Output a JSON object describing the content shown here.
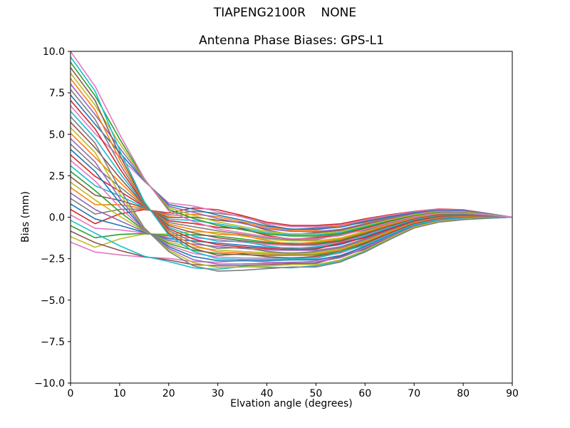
{
  "figure": {
    "suptitle": "TIAPENG2100R    NONE",
    "title": "Antenna Phase Biases: GPS-L1",
    "background": "#ffffff"
  },
  "axes": {
    "xlabel": "Elvation angle (degrees)",
    "ylabel": "Bias (mm)",
    "xlim": [
      0,
      90
    ],
    "ylim": [
      -10.0,
      10.0
    ],
    "xticks": [
      0,
      10,
      20,
      30,
      40,
      50,
      60,
      70,
      80,
      90
    ],
    "xtick_labels": [
      "0",
      "10",
      "20",
      "30",
      "40",
      "50",
      "60",
      "70",
      "80",
      "90"
    ],
    "yticks": [
      10.0,
      7.5,
      5.0,
      2.5,
      0.0,
      -2.5,
      -5.0,
      -7.5,
      -10.0
    ],
    "ytick_labels": [
      "10.0",
      "7.5",
      "5.0",
      "2.5",
      "0.0",
      "−2.5",
      "−5.0",
      "−7.5",
      "−10.0"
    ],
    "grid": false,
    "legend": "none",
    "spine_color": "#000000",
    "tick_color": "#000000"
  },
  "chart_data": {
    "type": "line",
    "title": "Antenna Phase Biases: GPS-L1",
    "xlabel": "Elvation angle (degrees)",
    "ylabel": "Bias (mm)",
    "xlim": [
      0,
      90
    ],
    "ylim": [
      -10.0,
      10.0
    ],
    "grid": false,
    "legend": "none",
    "palette": [
      "#1f77b4",
      "#ff7f0e",
      "#2ca02c",
      "#d62728",
      "#9467bd",
      "#8c564b",
      "#e377c2",
      "#7f7f7f",
      "#bcbd22",
      "#17becf"
    ],
    "x": [
      0,
      5,
      10,
      15,
      20,
      25,
      30,
      35,
      40,
      45,
      50,
      55,
      60,
      65,
      70,
      75,
      80,
      85,
      90
    ],
    "series": [
      {
        "color": "#e377c2",
        "values": [
          -1.5,
          -2.1,
          -2.27,
          -2.41,
          -2.48,
          -2.67,
          -2.72,
          -2.6,
          -2.7,
          -2.75,
          -2.64,
          -2.37,
          -1.81,
          -1.14,
          -0.51,
          -0.19,
          -0.06,
          -0.03,
          0.0
        ]
      },
      {
        "color": "#bcbd22",
        "values": [
          -1.17,
          -1.81,
          -1.31,
          -1.01,
          -1.02,
          -0.87,
          -0.92,
          -1.13,
          -1.34,
          -1.43,
          -1.43,
          -1.25,
          -0.84,
          -0.41,
          -0.02,
          0.2,
          0.23,
          0.12,
          0.0
        ]
      },
      {
        "color": "#8c564b",
        "values": [
          -0.84,
          -1.53,
          -2.0,
          -2.38,
          -2.58,
          -2.86,
          -2.93,
          -2.92,
          -2.86,
          -2.79,
          -2.79,
          -2.35,
          -1.93,
          -1.22,
          -0.56,
          -0.23,
          -0.1,
          -0.04,
          0.0
        ]
      },
      {
        "color": "#2ca02c",
        "values": [
          -0.51,
          -1.24,
          -1.04,
          -0.98,
          -1.11,
          -1.06,
          -1.14,
          -1.31,
          -1.5,
          -1.57,
          -1.57,
          -1.39,
          -0.96,
          -0.49,
          -0.08,
          0.16,
          0.19,
          0.1,
          0.0
        ]
      },
      {
        "color": "#17becf",
        "values": [
          -0.19,
          -0.96,
          -1.72,
          -2.35,
          -2.67,
          -3.05,
          -3.14,
          -2.98,
          -3.02,
          -3.05,
          -2.93,
          -2.63,
          -2.04,
          -1.31,
          -0.62,
          -0.28,
          -0.13,
          -0.06,
          0.0
        ]
      },
      {
        "color": "#e377c2",
        "values": [
          0.14,
          -0.67,
          -0.76,
          -0.94,
          -1.21,
          -1.24,
          -1.35,
          -1.5,
          -1.66,
          -1.71,
          -1.71,
          -1.52,
          -1.07,
          -0.58,
          -0.14,
          0.11,
          0.16,
          0.08,
          0.0
        ]
      },
      {
        "color": "#d62728",
        "values": [
          0.47,
          -0.39,
          0.2,
          0.46,
          0.26,
          0.56,
          0.45,
          0.1,
          -0.3,
          -0.5,
          -0.5,
          -0.4,
          -0.1,
          0.15,
          0.35,
          0.5,
          0.45,
          0.23,
          0.0
        ]
      },
      {
        "color": "#1f77b4",
        "values": [
          0.8,
          -0.1,
          -0.49,
          -0.91,
          -1.3,
          -1.43,
          -1.56,
          -1.69,
          -1.82,
          -1.86,
          -1.86,
          -1.65,
          -1.19,
          -0.66,
          -0.19,
          0.07,
          0.12,
          0.07,
          0.0
        ]
      },
      {
        "color": "#7f7f7f",
        "values": [
          1.13,
          0.19,
          0.47,
          0.5,
          0.16,
          0.37,
          0.24,
          0.05,
          -0.46,
          -0.75,
          -0.64,
          -0.53,
          -0.22,
          0.07,
          0.29,
          0.46,
          0.41,
          0.21,
          0.0
        ]
      },
      {
        "color": "#9467bd",
        "values": [
          1.46,
          0.47,
          -0.21,
          -0.87,
          -1.4,
          -1.62,
          -1.77,
          -1.88,
          -1.98,
          -2.0,
          -2.0,
          -1.78,
          -1.3,
          -0.75,
          -0.25,
          0.02,
          0.09,
          0.05,
          0.0
        ]
      },
      {
        "color": "#ff7f0e",
        "values": [
          1.79,
          0.76,
          0.75,
          0.53,
          0.06,
          0.18,
          0.03,
          -0.28,
          -0.62,
          -0.79,
          -0.79,
          -0.51,
          -0.33,
          -0.02,
          0.24,
          0.41,
          0.38,
          0.2,
          0.0
        ]
      },
      {
        "color": "#bcbd22",
        "values": [
          2.11,
          1.04,
          0.06,
          -0.84,
          -1.5,
          -1.81,
          -1.98,
          -2.07,
          -2.14,
          -2.14,
          -2.14,
          -1.91,
          -1.41,
          -0.84,
          -0.31,
          -0.03,
          0.06,
          0.03,
          0.0
        ]
      },
      {
        "color": "#8c564b",
        "values": [
          2.44,
          1.33,
          1.02,
          0.57,
          -0.03,
          0.0,
          -0.18,
          -0.33,
          -0.78,
          -1.05,
          -0.93,
          -0.79,
          -0.44,
          -0.11,
          0.18,
          0.36,
          0.35,
          0.18,
          0.0
        ]
      },
      {
        "color": "#2ca02c",
        "values": [
          2.77,
          1.61,
          0.33,
          -0.8,
          -1.59,
          -1.99,
          -2.19,
          -2.26,
          -2.3,
          -2.29,
          -2.29,
          -2.04,
          -1.53,
          -0.92,
          -0.36,
          -0.07,
          0.02,
          0.02,
          0.0
        ]
      },
      {
        "color": "#17becf",
        "values": [
          3.1,
          1.9,
          1.29,
          0.6,
          -0.13,
          -0.19,
          -0.4,
          -0.65,
          -0.94,
          -1.07,
          -1.07,
          -0.93,
          -0.56,
          -0.19,
          0.12,
          0.32,
          0.31,
          0.16,
          0.0
        ]
      },
      {
        "color": "#e377c2",
        "values": [
          3.43,
          2.19,
          0.61,
          -0.77,
          -1.69,
          -2.18,
          -2.4,
          -2.45,
          -2.46,
          -2.43,
          -2.43,
          -2.17,
          -1.64,
          -1.01,
          -0.42,
          -0.12,
          -0.01,
          0.0,
          0.0
        ]
      },
      {
        "color": "#d62728",
        "values": [
          3.76,
          2.47,
          1.57,
          0.64,
          -0.22,
          -0.38,
          -0.61,
          -0.7,
          -1.1,
          -1.33,
          -1.22,
          -1.06,
          -0.67,
          -0.28,
          0.07,
          0.27,
          0.28,
          0.15,
          0.0
        ]
      },
      {
        "color": "#1f77b4",
        "values": [
          4.09,
          2.76,
          0.88,
          -0.73,
          -1.78,
          -2.37,
          -2.62,
          -2.63,
          -2.62,
          -2.57,
          -2.57,
          -2.31,
          -1.76,
          -1.09,
          -0.48,
          -0.16,
          -0.05,
          -0.02,
          0.0
        ]
      },
      {
        "color": "#7f7f7f",
        "values": [
          4.41,
          3.04,
          1.84,
          0.67,
          -0.32,
          -0.57,
          -0.82,
          -1.03,
          -1.26,
          -1.36,
          -1.36,
          -1.04,
          -0.79,
          -0.36,
          0.01,
          0.23,
          0.24,
          0.13,
          0.0
        ]
      },
      {
        "color": "#9467bd",
        "values": [
          4.74,
          3.33,
          1.16,
          -0.7,
          -1.88,
          -2.56,
          -2.83,
          -2.82,
          -2.78,
          -2.71,
          -2.71,
          -2.44,
          -1.87,
          -1.18,
          -0.54,
          -0.21,
          -0.08,
          -0.04,
          0.0
        ]
      },
      {
        "color": "#ff7f0e",
        "values": [
          5.07,
          3.61,
          2.12,
          0.71,
          -0.42,
          -0.75,
          -1.03,
          -1.08,
          -1.42,
          -1.62,
          -1.5,
          -1.32,
          -0.9,
          -0.45,
          -0.05,
          0.18,
          0.21,
          0.11,
          0.0
        ]
      },
      {
        "color": "#bcbd22",
        "values": [
          5.4,
          3.9,
          1.43,
          -0.67,
          -1.98,
          -2.74,
          -3.04,
          -3.01,
          -2.94,
          -2.86,
          -2.86,
          -2.57,
          -1.99,
          -1.26,
          -0.59,
          -0.25,
          -0.12,
          -0.05,
          0.0
        ]
      },
      {
        "color": "#8c564b",
        "values": [
          5.73,
          4.19,
          2.39,
          0.74,
          -0.51,
          -0.94,
          -1.24,
          -1.41,
          -1.58,
          -1.64,
          -1.64,
          -1.45,
          -1.02,
          -0.53,
          -0.11,
          0.14,
          0.17,
          0.09,
          0.0
        ]
      },
      {
        "color": "#7f7f7f",
        "values": [
          6.06,
          4.47,
          1.71,
          -0.63,
          -2.07,
          -2.93,
          -3.25,
          -3.2,
          -3.1,
          -3.0,
          -3.0,
          -2.7,
          -2.1,
          -1.35,
          -0.65,
          -0.3,
          -0.15,
          -0.07,
          0.0
        ]
      },
      {
        "color": "#17becf",
        "values": [
          6.39,
          4.76,
          2.67,
          0.77,
          -0.61,
          -1.13,
          -1.45,
          -1.46,
          -1.74,
          -1.9,
          -1.79,
          -1.58,
          -1.13,
          -0.62,
          -0.16,
          0.09,
          0.14,
          0.08,
          0.0
        ]
      },
      {
        "color": "#e377c2",
        "values": [
          6.72,
          5.04,
          3.63,
          2.18,
          0.86,
          0.68,
          0.34,
          0.01,
          -0.38,
          -0.57,
          -0.57,
          -0.47,
          -0.16,
          0.11,
          0.32,
          0.48,
          0.43,
          0.22,
          0.0
        ]
      },
      {
        "color": "#d62728",
        "values": [
          7.04,
          5.33,
          2.94,
          0.81,
          -0.7,
          -1.31,
          -1.66,
          -1.79,
          -1.9,
          -1.93,
          -1.93,
          -1.56,
          -1.24,
          -0.71,
          -0.22,
          0.04,
          0.11,
          0.06,
          0.0
        ]
      },
      {
        "color": "#1f77b4",
        "values": [
          7.37,
          5.61,
          3.9,
          2.21,
          0.76,
          0.49,
          0.13,
          -0.18,
          -0.54,
          -0.72,
          -0.72,
          -0.6,
          -0.27,
          0.02,
          0.27,
          0.43,
          0.4,
          0.21,
          0.0
        ]
      },
      {
        "color": "#7f7f7f",
        "values": [
          7.7,
          5.9,
          3.22,
          0.84,
          -0.8,
          -1.5,
          -1.88,
          -1.83,
          -2.06,
          -2.18,
          -2.07,
          -1.85,
          -1.36,
          -0.79,
          -0.28,
          0.0,
          0.07,
          0.04,
          0.0
        ]
      },
      {
        "color": "#9467bd",
        "values": [
          8.03,
          6.19,
          4.18,
          2.25,
          0.66,
          0.3,
          -0.08,
          -0.37,
          -0.7,
          -0.86,
          -0.86,
          -0.73,
          -0.39,
          -0.06,
          0.21,
          0.39,
          0.36,
          0.19,
          0.0
        ]
      },
      {
        "color": "#ff7f0e",
        "values": [
          8.36,
          6.47,
          3.49,
          0.88,
          -0.9,
          -1.69,
          -2.09,
          -2.16,
          -2.22,
          -2.21,
          -2.21,
          -1.98,
          -1.47,
          -0.88,
          -0.34,
          -0.05,
          0.04,
          0.02,
          0.0
        ]
      },
      {
        "color": "#bcbd22",
        "values": [
          8.69,
          6.76,
          4.45,
          2.28,
          0.57,
          0.11,
          -0.29,
          -0.56,
          -0.86,
          -1.0,
          -1.0,
          -0.86,
          -0.5,
          -0.15,
          0.15,
          0.34,
          0.33,
          0.17,
          0.0
        ]
      },
      {
        "color": "#8c564b",
        "values": [
          9.02,
          7.04,
          3.76,
          0.91,
          -0.99,
          -1.88,
          -2.3,
          -2.21,
          -2.38,
          -2.47,
          -2.36,
          -2.11,
          -1.59,
          -0.96,
          -0.39,
          -0.09,
          0.0,
          0.01,
          0.0
        ]
      },
      {
        "color": "#2ca02c",
        "values": [
          9.34,
          7.33,
          4.72,
          2.32,
          0.47,
          -0.07,
          -0.5,
          -0.75,
          -1.02,
          -1.14,
          -1.14,
          -0.99,
          -0.62,
          -0.23,
          0.09,
          0.3,
          0.29,
          0.15,
          0.0
        ]
      },
      {
        "color": "#17becf",
        "values": [
          9.67,
          7.61,
          4.04,
          0.95,
          -1.09,
          -2.06,
          -2.51,
          -2.54,
          -2.54,
          -2.5,
          -2.5,
          -2.09,
          -1.7,
          -1.05,
          -0.45,
          -0.14,
          -0.03,
          -0.01,
          0.0
        ]
      },
      {
        "color": "#e377c2",
        "values": [
          10.0,
          7.9,
          5.0,
          2.35,
          0.38,
          -0.26,
          -0.71,
          -0.94,
          -1.18,
          -1.29,
          -1.29,
          -1.12,
          -0.73,
          -0.32,
          0.04,
          0.25,
          0.26,
          0.14,
          0.0
        ]
      }
    ]
  }
}
